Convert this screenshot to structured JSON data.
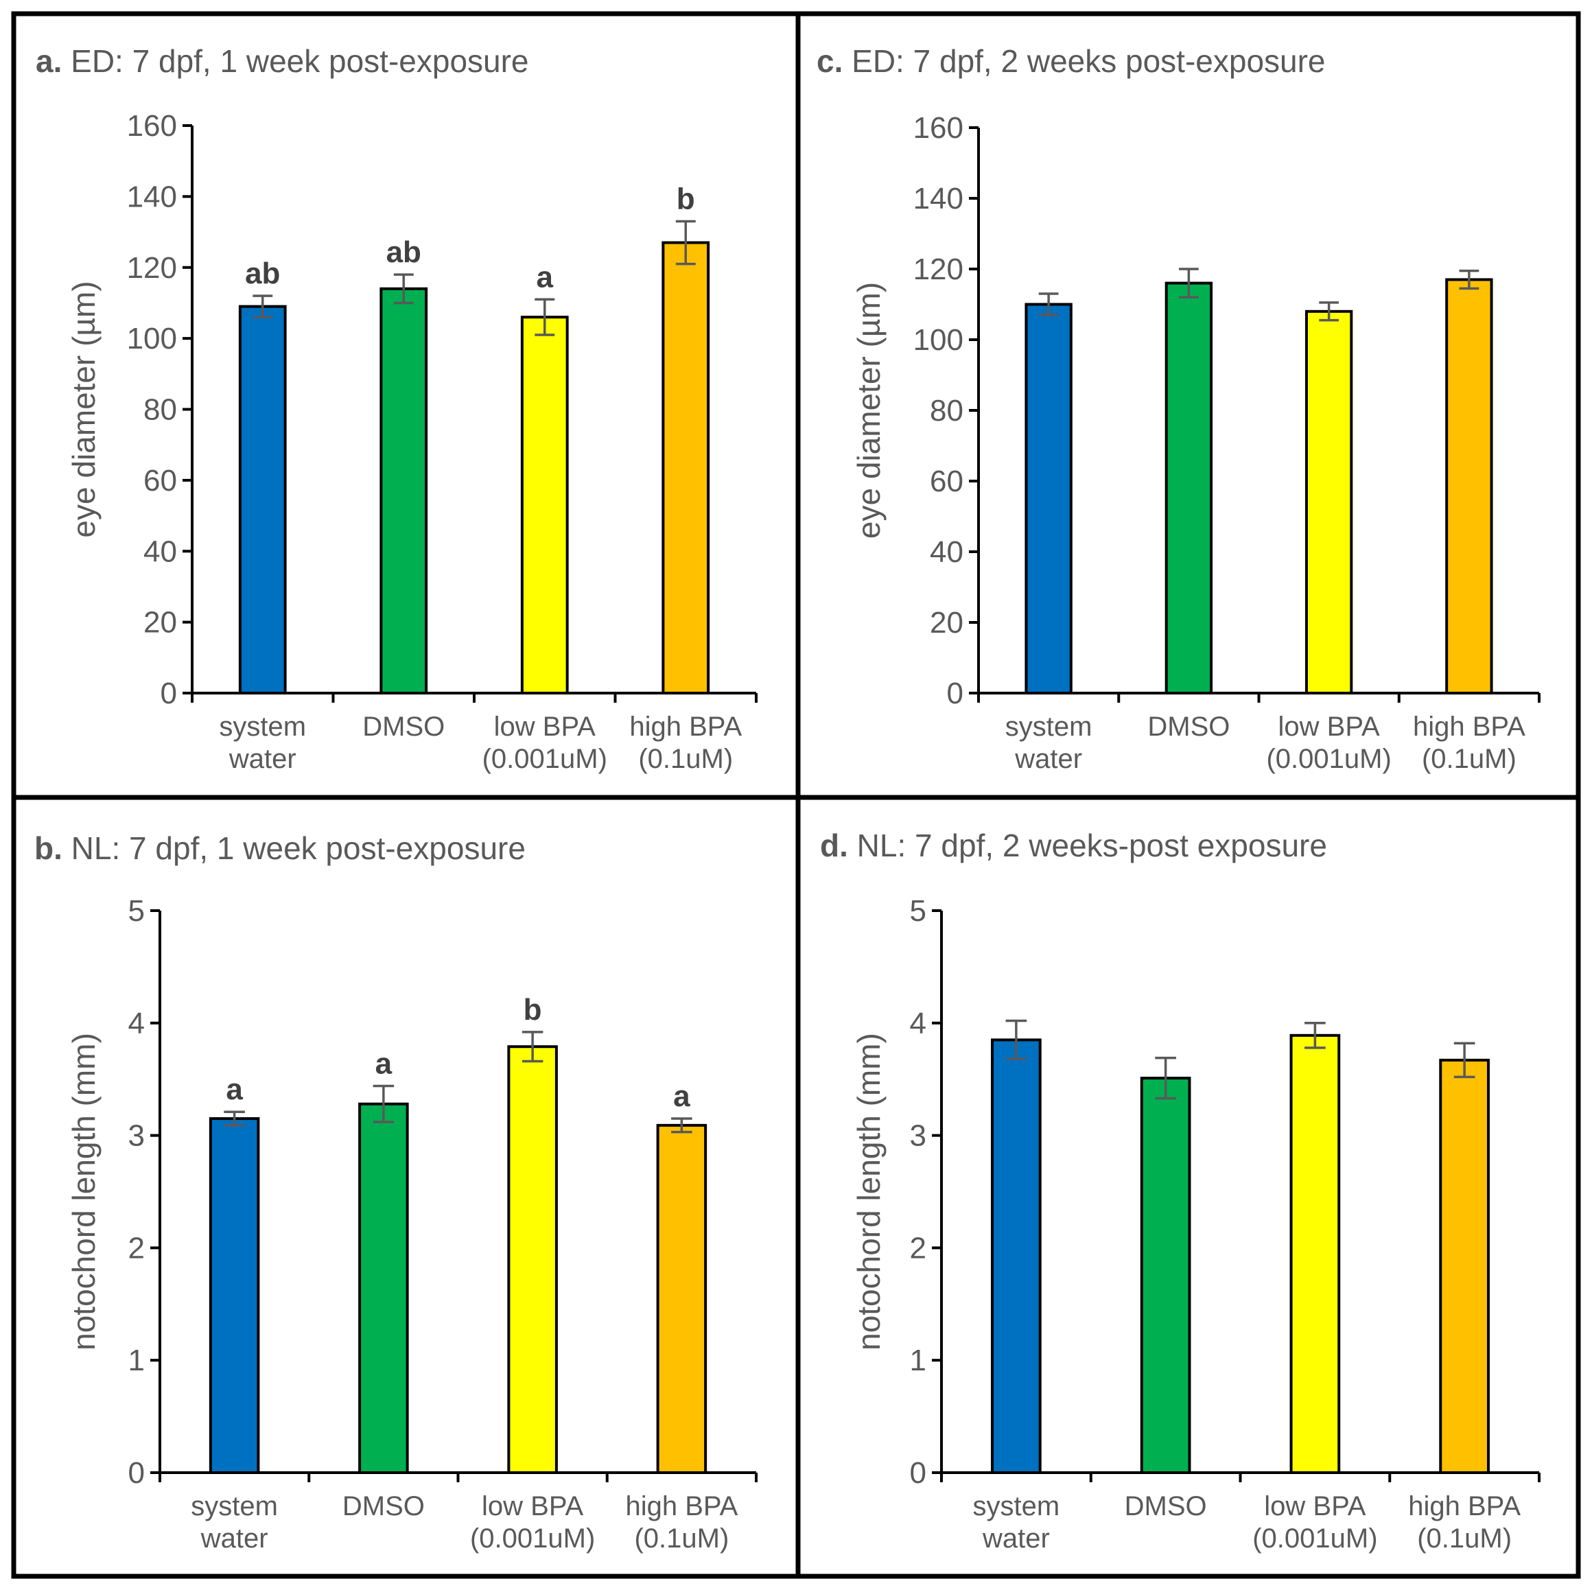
{
  "colors": {
    "system_water": "#0070C0",
    "dmso": "#00B050",
    "low_bpa": "#FFFF00",
    "high_bpa": "#FFC000"
  },
  "chart_data": [
    {
      "panel": "a",
      "type": "bar",
      "title": "ED: 7 dpf, 1 week post-exposure",
      "ylabel": "eye diameter (µm)",
      "ylim": [
        0,
        160
      ],
      "yticks": [
        "0",
        "20",
        "40",
        "60",
        "80",
        "100",
        "120",
        "140",
        "160"
      ],
      "categories": [
        [
          "system",
          "water"
        ],
        [
          "DMSO"
        ],
        [
          "low BPA",
          "(0.001uM)"
        ],
        [
          "high BPA",
          "(0.1uM)"
        ]
      ],
      "values": [
        109,
        114,
        106,
        127
      ],
      "errors": [
        3,
        4,
        5,
        6
      ],
      "significance": [
        "ab",
        "ab",
        "a",
        "b"
      ]
    },
    {
      "panel": "c",
      "type": "bar",
      "title": "ED: 7 dpf, 2 weeks post-exposure",
      "ylabel": "eye diameter (µm)",
      "ylim": [
        0,
        160
      ],
      "yticks": [
        "0",
        "20",
        "40",
        "60",
        "80",
        "100",
        "120",
        "140",
        "160"
      ],
      "categories": [
        [
          "system",
          "water"
        ],
        [
          "DMSO"
        ],
        [
          "low BPA",
          "(0.001uM)"
        ],
        [
          "high BPA",
          "(0.1uM)"
        ]
      ],
      "values": [
        110,
        116,
        108,
        117
      ],
      "errors": [
        3,
        4,
        2.5,
        2.5
      ],
      "significance": []
    },
    {
      "panel": "b",
      "type": "bar",
      "title": "NL: 7 dpf, 1 week post-exposure",
      "ylabel": "notochord length (mm)",
      "ylim": [
        0,
        5
      ],
      "yticks": [
        "0",
        "1",
        "2",
        "3",
        "4",
        "5"
      ],
      "categories": [
        [
          "system",
          "water"
        ],
        [
          "DMSO"
        ],
        [
          "low BPA",
          "(0.001uM)"
        ],
        [
          "high BPA",
          "(0.1uM)"
        ]
      ],
      "values": [
        3.15,
        3.28,
        3.79,
        3.09
      ],
      "errors": [
        0.06,
        0.16,
        0.13,
        0.06
      ],
      "significance": [
        "a",
        "a",
        "b",
        "a"
      ]
    },
    {
      "panel": "d",
      "type": "bar",
      "title": "NL: 7 dpf, 2 weeks-post exposure",
      "ylabel": "notochord length (mm)",
      "ylim": [
        0,
        5
      ],
      "yticks": [
        "0",
        "1",
        "2",
        "3",
        "4",
        "5"
      ],
      "categories": [
        [
          "system",
          "water"
        ],
        [
          "DMSO"
        ],
        [
          "low BPA",
          "(0.001uM)"
        ],
        [
          "high BPA",
          "(0.1uM)"
        ]
      ],
      "values": [
        3.85,
        3.51,
        3.89,
        3.67
      ],
      "errors": [
        0.17,
        0.18,
        0.11,
        0.15
      ],
      "significance": []
    }
  ]
}
